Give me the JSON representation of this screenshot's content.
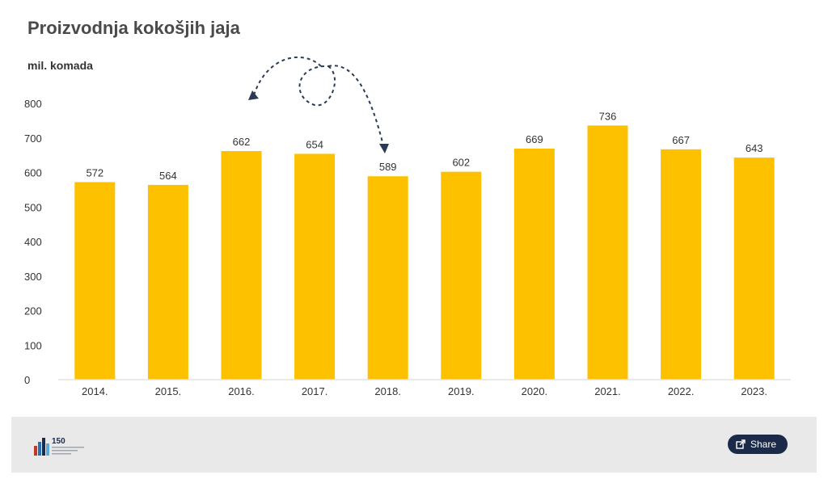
{
  "footer": {
    "share_label": "Share",
    "logo_text": "150"
  },
  "colors": {
    "bar": "#FDC100",
    "title": "#4a4a4a",
    "label": "#333333",
    "annotation": "#2b3a55",
    "footer_bg": "#e9e9ea",
    "share_bg": "#1c2a4a"
  },
  "icons": {
    "share": "share-icon",
    "logo": "logo-icon"
  },
  "chart_data": {
    "type": "bar",
    "title": "Proizvodnja kokošjih jaja",
    "ylabel": "mil. komada",
    "categories": [
      "2014.",
      "2015.",
      "2016.",
      "2017.",
      "2018.",
      "2019.",
      "2020.",
      "2021.",
      "2022.",
      "2023."
    ],
    "values": [
      572,
      564,
      662,
      654,
      589,
      602,
      669,
      736,
      667,
      643
    ],
    "yticks": [
      0,
      100,
      200,
      300,
      400,
      500,
      600,
      700,
      800
    ],
    "ylim": [
      0,
      800
    ],
    "grid": false,
    "legend": "none"
  }
}
